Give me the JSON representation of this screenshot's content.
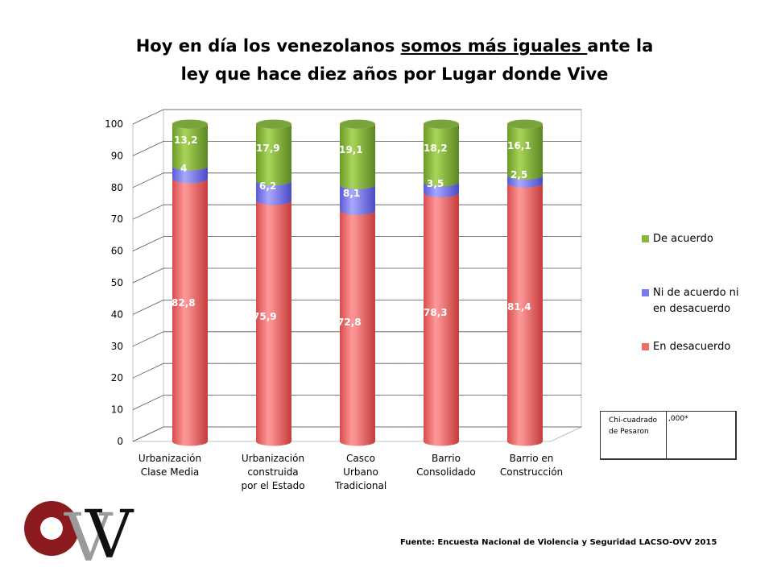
{
  "title": {
    "line1_pre": "Hoy en día los venezolanos ",
    "line1_underlined": "somos más iguales ",
    "line1_post": "ante la",
    "line2": "ley que hace diez años por Lugar donde Vive"
  },
  "chart_data": {
    "type": "bar",
    "stacked": true,
    "style": "3d-cylinder",
    "categories": [
      "Urbanización Clase Media",
      "Urbanización construida por el Estado",
      "Casco Urbano Tradicional",
      "Barrio Consolidado",
      "Barrio en Construcción"
    ],
    "series": [
      {
        "name": "En desacuerdo",
        "color": "#f26b6b",
        "values": [
          82.8,
          75.9,
          72.8,
          78.3,
          81.4
        ],
        "labels": [
          "82,8",
          "75,9",
          "72,8",
          "78,3",
          "81,4"
        ]
      },
      {
        "name": "Ni de acuerdo ni en desacuerdo",
        "color": "#7a7aef",
        "values": [
          4,
          6.2,
          8.1,
          3.5,
          2.5
        ],
        "labels": [
          "4",
          "6,2",
          "8,1",
          "3,5",
          "2,5"
        ]
      },
      {
        "name": "De acuerdo",
        "color": "#88b83c",
        "values": [
          13.2,
          17.9,
          19.1,
          18.2,
          16.1
        ],
        "labels": [
          "13,2",
          "17,9",
          "19,1",
          "18,2",
          "16,1"
        ]
      }
    ],
    "y_ticks": [
      "0",
      "10",
      "20",
      "30",
      "40",
      "50",
      "60",
      "70",
      "80",
      "90",
      "100"
    ],
    "ylim": [
      0,
      100
    ],
    "grid": true,
    "legend_position": "right"
  },
  "legend": [
    {
      "label": "De acuerdo",
      "color": "#88b83c"
    },
    {
      "label": "Ni de acuerdo ni en desacuerdo",
      "color": "#7a7aef"
    },
    {
      "label": "En desacuerdo",
      "color": "#f26b6b"
    }
  ],
  "stat": {
    "label": "Chi-cuadrado de Pesaron",
    "value": ",000*"
  },
  "source": "Fuente: Encuesta Nacional de Violencia y Seguridad LACSO-OVV 2015",
  "logo": {
    "text": "OVV"
  }
}
